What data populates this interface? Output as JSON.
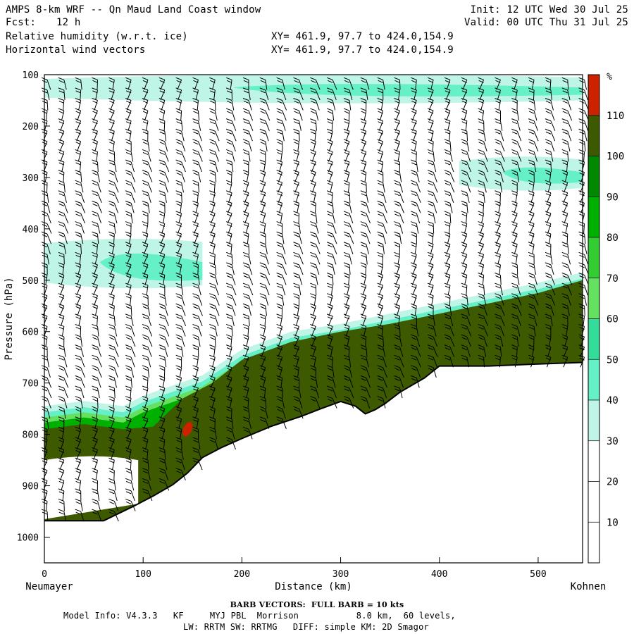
{
  "header": {
    "title": "AMPS 8-km WRF -- Qn Maud Land Coast window",
    "fcst_label": "Fcst:",
    "fcst_value": "12 h",
    "field1": "Relative humidity (w.r.t. ice)",
    "field2": "Horizontal wind vectors",
    "xy1": "XY= 461.9, 97.7 to 424.0,154.9",
    "xy2": "XY= 461.9, 97.7 to 424.0,154.9",
    "init": "Init: 12 UTC Wed 30 Jul 25",
    "valid": "Valid: 00 UTC Thu 31 Jul 25"
  },
  "footer": {
    "barb_note": "BARB VECTORS:  FULL BARB = 10 kts",
    "model_line1": "Model Info: V4.3.3   KF     MYJ PBL  Morrison           8.0 km,  60 levels,",
    "model_line2": "LW: RRTM SW: RRTMG   DIFF: simple KM: 2D Smagor"
  },
  "chart_data": {
    "type": "heatmap",
    "title": "Relative humidity (w.r.t. ice)",
    "xlabel": "Distance (km)",
    "ylabel": "Pressure (hPa)",
    "xlim": [
      0,
      545
    ],
    "ylim": [
      1050,
      100
    ],
    "x_ticks": [
      0,
      100,
      200,
      300,
      400,
      500
    ],
    "y_ticks": [
      100,
      200,
      300,
      400,
      500,
      600,
      700,
      800,
      900,
      1000
    ],
    "x_end_labels": {
      "left": "Neumayer",
      "right": "Kohnen"
    },
    "colorbar": {
      "unit": "%",
      "ticks": [
        10,
        20,
        30,
        40,
        50,
        60,
        70,
        80,
        90,
        100,
        110
      ],
      "colors": [
        "#ffffff",
        "#ffffff",
        "#ffffff",
        "#bff5e6",
        "#66f0c8",
        "#33dd99",
        "#66e060",
        "#33cc33",
        "#00b000",
        "#008800",
        "#3d5a00",
        "#cc2200"
      ]
    },
    "terrain_surface": {
      "x_km": [
        0,
        25,
        60,
        90,
        110,
        130,
        145,
        160,
        180,
        200,
        230,
        260,
        280,
        300,
        315,
        325,
        335,
        345,
        360,
        385,
        400,
        450,
        500,
        545
      ],
      "p_hpa": [
        968,
        968,
        968,
        940,
        920,
        898,
        875,
        845,
        825,
        808,
        784,
        765,
        750,
        736,
        745,
        760,
        752,
        740,
        718,
        690,
        667,
        667,
        663,
        660
      ]
    },
    "moist_layer_top": {
      "x_km": [
        0,
        40,
        80,
        100,
        130,
        160,
        200,
        250,
        300,
        350,
        400,
        450,
        500,
        545
      ],
      "p_hpa": [
        745,
        735,
        745,
        725,
        705,
        685,
        635,
        600,
        585,
        565,
        545,
        525,
        505,
        485
      ]
    },
    "moist_core_top": {
      "x_km": [
        0,
        40,
        80,
        110,
        140,
        170,
        200,
        250,
        300,
        350,
        400,
        450,
        500,
        545
      ],
      "p_hpa": [
        790,
        780,
        790,
        785,
        730,
        700,
        655,
        620,
        600,
        585,
        565,
        545,
        525,
        500
      ]
    },
    "upper_moist_bands": [
      {
        "x_km": [
          0,
          545
        ],
        "p_hpa_top": 100,
        "p_hpa_bottom": 150,
        "note": "cyan band near top"
      },
      {
        "x_km": [
          420,
          545
        ],
        "p_hpa_top": 260,
        "p_hpa_bottom": 320,
        "note": "cyan band right"
      },
      {
        "x_km": [
          0,
          160
        ],
        "p_hpa_top": 420,
        "p_hpa_bottom": 510,
        "note": "cyan band left"
      }
    ],
    "red_patch": {
      "x_km": 145,
      "p_hpa": 790,
      "value_pct": 110
    },
    "wind_barbs_note": "FULL BARB = 10 kts"
  }
}
